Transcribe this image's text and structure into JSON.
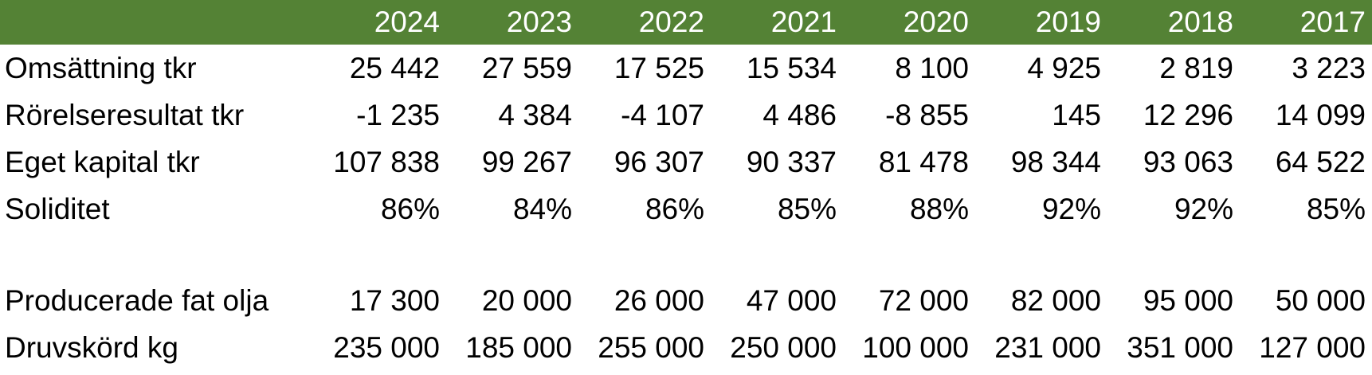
{
  "years": [
    "2024",
    "2023",
    "2022",
    "2021",
    "2020",
    "2019",
    "2018",
    "2017"
  ],
  "rows": [
    {
      "label": "Omsättning tkr",
      "values": [
        "25 442",
        "27 559",
        "17 525",
        "15 534",
        "8 100",
        "4 925",
        "2 819",
        "3 223"
      ]
    },
    {
      "label": "Rörelseresultat tkr",
      "values": [
        "-1 235",
        "4 384",
        "-4 107",
        "4 486",
        "-8 855",
        "145",
        "12 296",
        "14 099"
      ]
    },
    {
      "label": "Eget kapital tkr",
      "values": [
        "107 838",
        "99 267",
        "96 307",
        "90 337",
        "81 478",
        "98 344",
        "93 063",
        "64 522"
      ]
    },
    {
      "label": "Soliditet",
      "values": [
        "86%",
        "84%",
        "86%",
        "85%",
        "88%",
        "92%",
        "92%",
        "85%"
      ]
    },
    {
      "label": "Producerade fat olja",
      "values": [
        "17 300",
        "20 000",
        "26 000",
        "47 000",
        "72 000",
        "82 000",
        "95 000",
        "50 000"
      ]
    },
    {
      "label": "Druvskörd kg",
      "values": [
        "235 000",
        "185 000",
        "255 000",
        "250 000",
        "100 000",
        "231 000",
        "351 000",
        "127 000"
      ]
    }
  ],
  "colors": {
    "header_background": "#548235",
    "header_text": "#ffffff",
    "body_text": "#000000"
  }
}
